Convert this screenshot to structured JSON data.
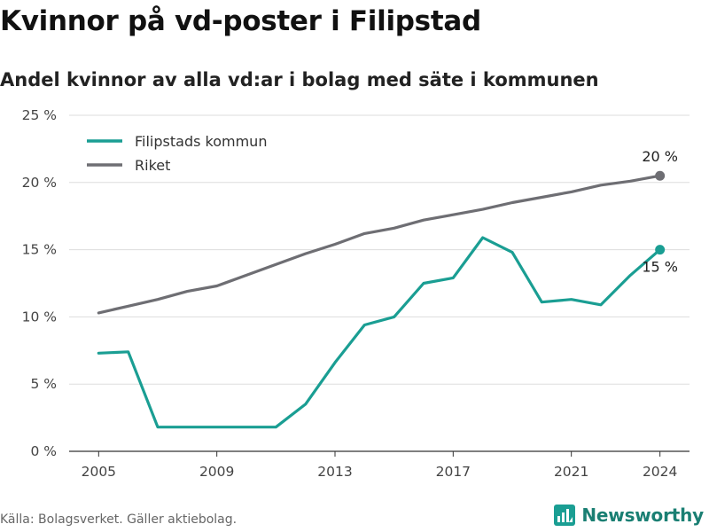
{
  "header": {
    "title": "Kvinnor på vd-poster i Filipstad",
    "subtitle": "Andel kvinnor av alla vd:ar i bolag med säte i kommunen"
  },
  "footer": {
    "source": "Källa: Bolagsverket. Gäller aktiebolag.",
    "brand": "Newsworthy"
  },
  "chart_data": {
    "type": "line",
    "title": "Kvinnor på vd-poster i Filipstad",
    "subtitle": "Andel kvinnor av alla vd:ar i bolag med säte i kommunen",
    "x": [
      2005,
      2006,
      2007,
      2008,
      2009,
      2010,
      2011,
      2012,
      2013,
      2014,
      2015,
      2016,
      2017,
      2018,
      2019,
      2020,
      2021,
      2022,
      2023,
      2024
    ],
    "x_ticks": [
      2005,
      2009,
      2013,
      2017,
      2021,
      2024
    ],
    "x_tick_labels": [
      "2005",
      "2009",
      "2013",
      "2017",
      "2021",
      "2024"
    ],
    "ylim": [
      0,
      25
    ],
    "y_ticks": [
      0,
      5,
      10,
      15,
      20,
      25
    ],
    "y_tick_labels": [
      "0 %",
      "5 %",
      "10 %",
      "15 %",
      "20 %",
      "25 %"
    ],
    "grid": true,
    "legend_position": "top-left",
    "series": [
      {
        "name": "Filipstads kommun",
        "color": "#1a9e93",
        "values": [
          7.3,
          7.4,
          1.8,
          1.8,
          1.8,
          1.8,
          1.8,
          3.5,
          6.6,
          9.4,
          10.0,
          12.5,
          12.9,
          15.9,
          14.8,
          11.1,
          11.3,
          10.9,
          13.1,
          15.0
        ],
        "end_label": "15 %"
      },
      {
        "name": "Riket",
        "color": "#6e6e73",
        "values": [
          10.3,
          10.8,
          11.3,
          11.9,
          12.3,
          13.1,
          13.9,
          14.7,
          15.4,
          16.2,
          16.6,
          17.2,
          17.6,
          18.0,
          18.5,
          18.9,
          19.3,
          19.8,
          20.1,
          20.5
        ],
        "end_label": "20 %"
      }
    ]
  }
}
